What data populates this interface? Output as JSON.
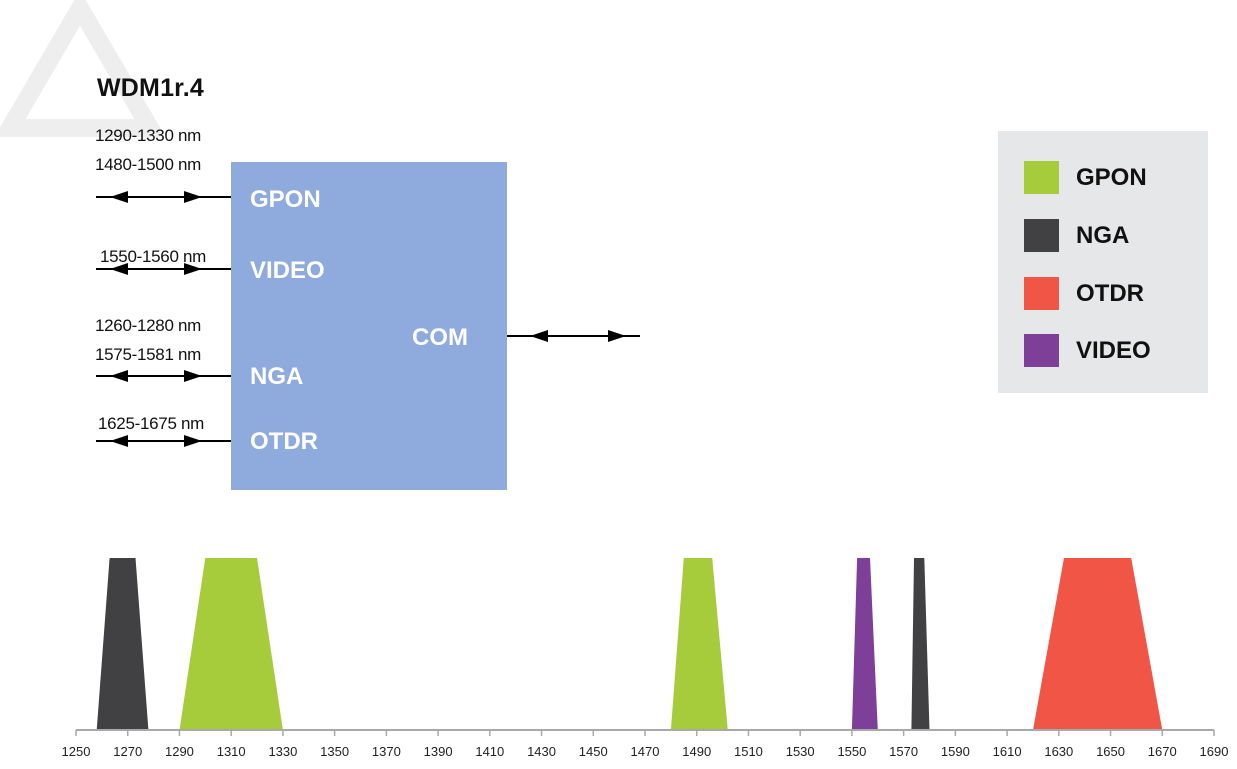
{
  "diagram": {
    "title": "WDM1r.4",
    "box": {
      "ports": [
        {
          "id": "gpon",
          "label": "GPON"
        },
        {
          "id": "video",
          "label": "VIDEO"
        },
        {
          "id": "nga",
          "label": "NGA"
        },
        {
          "id": "otdr",
          "label": "OTDR"
        }
      ],
      "common_port": "COM"
    },
    "ranges": {
      "gpon_1": "1290-1330 nm",
      "gpon_2": "1480-1500 nm",
      "video": "1550-1560 nm",
      "nga_1": "1260-1280 nm",
      "nga_2": "1575-1581 nm",
      "otdr": "1625-1675 nm"
    }
  },
  "legend": {
    "items": [
      {
        "label": "GPON",
        "color": "#a6cb3b"
      },
      {
        "label": "NGA",
        "color": "#414042"
      },
      {
        "label": "OTDR",
        "color": "#f05545"
      },
      {
        "label": "VIDEO",
        "color": "#7e3f98"
      }
    ]
  },
  "spectrum": {
    "axis_min": 1250,
    "axis_max": 1690,
    "tick_step": 20,
    "bands": [
      {
        "service": "NGA",
        "color": "#414042",
        "bottom": [
          1258,
          1278
        ],
        "top": [
          1263,
          1273
        ]
      },
      {
        "service": "GPON",
        "color": "#a6cb3b",
        "bottom": [
          1290,
          1330
        ],
        "top": [
          1300,
          1320
        ]
      },
      {
        "service": "GPON",
        "color": "#a6cb3b",
        "bottom": [
          1480,
          1502
        ],
        "top": [
          1485,
          1496
        ]
      },
      {
        "service": "VIDEO",
        "color": "#7e3f98",
        "bottom": [
          1550,
          1560
        ],
        "top": [
          1552,
          1557
        ]
      },
      {
        "service": "NGA",
        "color": "#414042",
        "bottom": [
          1573,
          1580
        ],
        "top": [
          1574,
          1578
        ]
      },
      {
        "service": "OTDR",
        "color": "#f05545",
        "bottom": [
          1620,
          1670
        ],
        "top": [
          1632,
          1658
        ]
      }
    ]
  }
}
